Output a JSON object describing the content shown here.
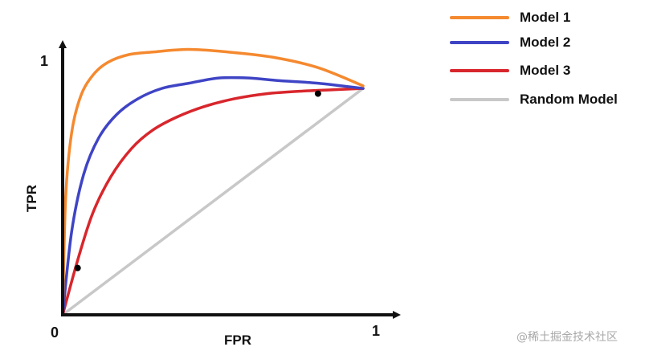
{
  "chart_data": {
    "type": "line",
    "title": "",
    "xlabel": "FPR",
    "ylabel": "TPR",
    "xlim": [
      0,
      1
    ],
    "ylim": [
      0,
      1
    ],
    "x_ticks": [
      "0",
      "1"
    ],
    "y_ticks": [
      "1"
    ],
    "grid": false,
    "legend_position": "top-right",
    "series": [
      {
        "name": "Model 1",
        "color": "#f5892f",
        "style": "curve",
        "x": [
          0,
          0.01,
          0.03,
          0.06,
          0.1,
          0.15,
          0.22,
          0.3,
          0.42,
          0.55,
          0.7,
          0.85,
          1.0
        ],
        "y": [
          0,
          0.45,
          0.7,
          0.84,
          0.92,
          0.97,
          1.0,
          1.01,
          1.02,
          1.01,
          0.99,
          0.95,
          0.88
        ]
      },
      {
        "name": "Model 2",
        "color": "#3f44c5",
        "style": "curve",
        "x": [
          0,
          0.03,
          0.07,
          0.12,
          0.18,
          0.25,
          0.33,
          0.42,
          0.52,
          0.62,
          0.72,
          0.85,
          1.0
        ],
        "y": [
          0,
          0.32,
          0.54,
          0.68,
          0.77,
          0.83,
          0.87,
          0.89,
          0.91,
          0.91,
          0.9,
          0.89,
          0.87
        ]
      },
      {
        "name": "Model 3",
        "color": "#d8262c",
        "style": "curve",
        "x": [
          0,
          0.05,
          0.1,
          0.16,
          0.23,
          0.3,
          0.38,
          0.47,
          0.57,
          0.68,
          0.8,
          0.9,
          1.0
        ],
        "y": [
          0,
          0.21,
          0.39,
          0.53,
          0.64,
          0.71,
          0.76,
          0.8,
          0.83,
          0.85,
          0.86,
          0.865,
          0.87
        ]
      },
      {
        "name": "Random Model",
        "color": "#c8c8c8",
        "style": "line",
        "x": [
          0,
          1.0
        ],
        "y": [
          0,
          0.87
        ]
      }
    ],
    "points": [
      {
        "x": 0.05,
        "y": 0.18
      },
      {
        "x": 0.85,
        "y": 0.85
      }
    ]
  },
  "watermark": "@稀土掘金技术社区"
}
